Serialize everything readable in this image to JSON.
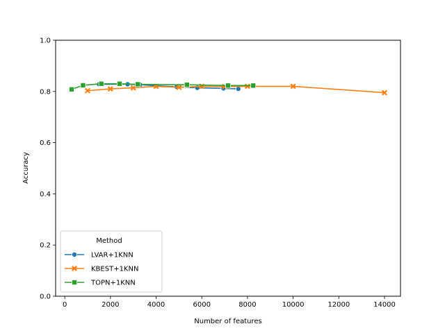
{
  "chart_data": {
    "type": "line",
    "title": "",
    "xlabel": "Number of features",
    "ylabel": "Accuracy",
    "xlim": [
      -400,
      14700
    ],
    "ylim": [
      0.0,
      1.0
    ],
    "xticks": [
      0,
      2000,
      4000,
      6000,
      8000,
      10000,
      12000,
      14000
    ],
    "yticks": [
      0.0,
      0.2,
      0.4,
      0.6,
      0.8,
      1.0
    ],
    "xtick_labels": [
      "0",
      "2000",
      "4000",
      "6000",
      "8000",
      "10000",
      "12000",
      "14000"
    ],
    "ytick_labels": [
      "0.0",
      "0.2",
      "0.4",
      "0.6",
      "0.8",
      "1.0"
    ],
    "grid": false,
    "legend": {
      "title": "Method",
      "placement": "lower-left"
    },
    "series": [
      {
        "name": "LVAR+1KNN",
        "color": "#1f77b4",
        "marker": "circle",
        "x": [
          1500,
          2750,
          3300,
          4900,
          5800,
          6950,
          7600
        ],
        "y": [
          0.828,
          0.828,
          0.826,
          0.818,
          0.814,
          0.812,
          0.81
        ]
      },
      {
        "name": "KBEST+1KNN",
        "color": "#ff7f0e",
        "marker": "x",
        "x": [
          1000,
          2000,
          3000,
          4000,
          5000,
          6000,
          7000,
          8000,
          10000,
          14000
        ],
        "y": [
          0.803,
          0.81,
          0.814,
          0.82,
          0.816,
          0.82,
          0.819,
          0.82,
          0.82,
          0.795
        ]
      },
      {
        "name": "TOPN+1KNN",
        "color": "#2ca02c",
        "marker": "square",
        "x": [
          300,
          800,
          1600,
          2400,
          3200,
          5350,
          7150,
          8250
        ],
        "y": [
          0.808,
          0.824,
          0.83,
          0.83,
          0.828,
          0.826,
          0.823,
          0.823
        ]
      }
    ]
  }
}
